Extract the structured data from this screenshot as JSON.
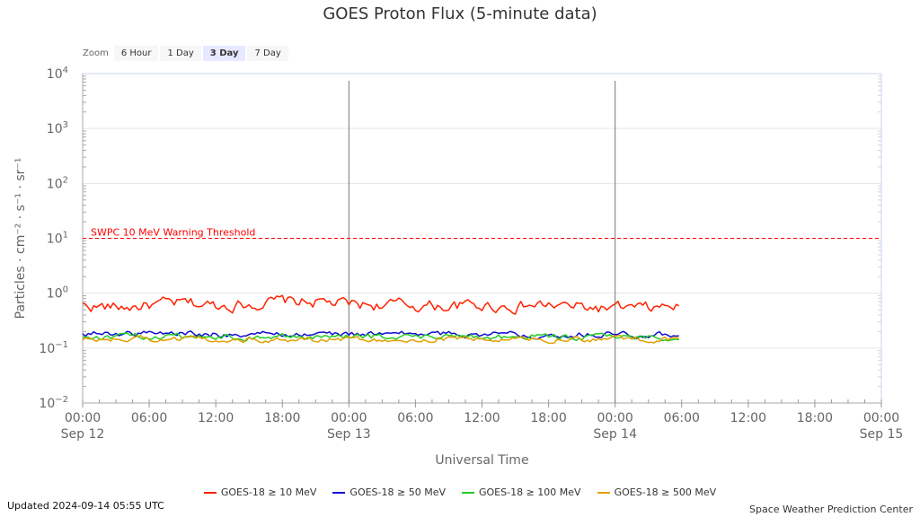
{
  "chart_data": {
    "type": "line",
    "title": "GOES Proton Flux (5-minute data)",
    "ylabel": "Particles · cm⁻² · s⁻¹ · sr⁻¹",
    "xlabel": "Universal Time",
    "yscale": "log",
    "yticks": [
      {
        "base": "10",
        "exp": "4",
        "value": 10000
      },
      {
        "base": "10",
        "exp": "3",
        "value": 1000
      },
      {
        "base": "10",
        "exp": "2",
        "value": 100
      },
      {
        "base": "10",
        "exp": "1",
        "value": 10
      },
      {
        "base": "10",
        "exp": "0",
        "value": 1
      },
      {
        "base": "10",
        "exp": "−1",
        "value": 0.1
      },
      {
        "base": "10",
        "exp": "−2",
        "value": 0.01
      }
    ],
    "ylim": [
      0.01,
      10000
    ],
    "xlim": [
      "2024-09-12 00:00",
      "2024-09-15 00:00"
    ],
    "xticks": [
      {
        "time": "00:00",
        "date": "Sep 12",
        "value": "2024-09-12 00:00"
      },
      {
        "time": "06:00",
        "date": "",
        "value": "2024-09-12 06:00"
      },
      {
        "time": "12:00",
        "date": "",
        "value": "2024-09-12 12:00"
      },
      {
        "time": "18:00",
        "date": "",
        "value": "2024-09-12 18:00"
      },
      {
        "time": "00:00",
        "date": "Sep 13",
        "value": "2024-09-13 00:00"
      },
      {
        "time": "06:00",
        "date": "",
        "value": "2024-09-13 06:00"
      },
      {
        "time": "12:00",
        "date": "",
        "value": "2024-09-13 12:00"
      },
      {
        "time": "18:00",
        "date": "",
        "value": "2024-09-13 18:00"
      },
      {
        "time": "00:00",
        "date": "Sep 14",
        "value": "2024-09-14 00:00"
      },
      {
        "time": "06:00",
        "date": "",
        "value": "2024-09-14 06:00"
      },
      {
        "time": "12:00",
        "date": "",
        "value": "2024-09-14 12:00"
      },
      {
        "time": "18:00",
        "date": "",
        "value": "2024-09-14 18:00"
      },
      {
        "time": "00:00",
        "date": "Sep 15",
        "value": "2024-09-15 00:00"
      }
    ],
    "day_lines": [
      "2024-09-13 00:00",
      "2024-09-14 00:00"
    ],
    "threshold": {
      "label": "SWPC 10 MeV Warning Threshold",
      "value": 10,
      "color": "#ff0000"
    },
    "grid": true,
    "legend": "bottom-center",
    "series": [
      {
        "name": "GOES-18 ≥ 10 MeV",
        "color": "#ff2200",
        "x": [
          "2024-09-12 00:00",
          "2024-09-12 03:00",
          "2024-09-12 06:00",
          "2024-09-12 09:00",
          "2024-09-12 12:00",
          "2024-09-12 15:00",
          "2024-09-12 18:00",
          "2024-09-12 21:00",
          "2024-09-13 00:00",
          "2024-09-13 03:00",
          "2024-09-13 06:00",
          "2024-09-13 09:00",
          "2024-09-13 12:00",
          "2024-09-13 15:00",
          "2024-09-13 18:00",
          "2024-09-13 21:00",
          "2024-09-14 00:00",
          "2024-09-14 03:00",
          "2024-09-14 05:55"
        ],
        "y": [
          0.6,
          0.55,
          0.6,
          0.65,
          0.6,
          0.65,
          0.7,
          0.7,
          0.62,
          0.62,
          0.6,
          0.58,
          0.6,
          0.58,
          0.6,
          0.55,
          0.52,
          0.52,
          0.58
        ]
      },
      {
        "name": "GOES-18 ≥ 50 MeV",
        "color": "#1010d0",
        "x": [
          "2024-09-12 00:00",
          "2024-09-12 06:00",
          "2024-09-12 12:00",
          "2024-09-12 18:00",
          "2024-09-13 00:00",
          "2024-09-13 06:00",
          "2024-09-13 12:00",
          "2024-09-13 18:00",
          "2024-09-14 00:00",
          "2024-09-14 05:55"
        ],
        "y": [
          0.18,
          0.19,
          0.18,
          0.18,
          0.18,
          0.18,
          0.18,
          0.18,
          0.18,
          0.18
        ]
      },
      {
        "name": "GOES-18 ≥ 100 MeV",
        "color": "#22cc22",
        "x": [
          "2024-09-12 00:00",
          "2024-09-12 06:00",
          "2024-09-12 12:00",
          "2024-09-12 18:00",
          "2024-09-13 00:00",
          "2024-09-13 06:00",
          "2024-09-13 12:00",
          "2024-09-13 18:00",
          "2024-09-14 00:00",
          "2024-09-14 05:55"
        ],
        "y": [
          0.16,
          0.16,
          0.16,
          0.16,
          0.16,
          0.16,
          0.16,
          0.16,
          0.16,
          0.16
        ]
      },
      {
        "name": "GOES-18 ≥ 500 MeV",
        "color": "#e0a000",
        "x": [
          "2024-09-12 00:00",
          "2024-09-12 06:00",
          "2024-09-12 12:00",
          "2024-09-12 18:00",
          "2024-09-13 00:00",
          "2024-09-13 06:00",
          "2024-09-13 12:00",
          "2024-09-13 18:00",
          "2024-09-14 00:00",
          "2024-09-14 05:55"
        ],
        "y": [
          0.145,
          0.145,
          0.145,
          0.145,
          0.145,
          0.145,
          0.145,
          0.145,
          0.145,
          0.145
        ]
      }
    ]
  },
  "zoom": {
    "label": "Zoom",
    "buttons": [
      {
        "label": "6 Hour",
        "active": false
      },
      {
        "label": "1 Day",
        "active": false
      },
      {
        "label": "3 Day",
        "active": true
      },
      {
        "label": "7 Day",
        "active": false
      }
    ]
  },
  "footer": {
    "updated": "Updated 2024-09-14 05:55 UTC",
    "credit": "Space Weather Prediction Center"
  }
}
